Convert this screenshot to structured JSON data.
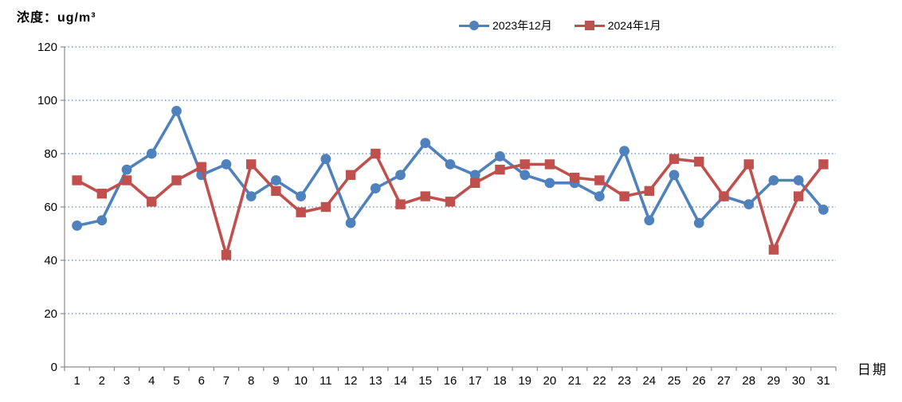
{
  "chart_data": {
    "type": "line",
    "title": "",
    "ylabel": "浓度：ug/m³",
    "xlabel": "日期",
    "categories": [
      "1",
      "2",
      "3",
      "4",
      "5",
      "6",
      "7",
      "8",
      "9",
      "10",
      "11",
      "12",
      "13",
      "14",
      "15",
      "16",
      "17",
      "18",
      "19",
      "20",
      "21",
      "22",
      "23",
      "24",
      "25",
      "26",
      "27",
      "28",
      "29",
      "30",
      "31"
    ],
    "series": [
      {
        "name": "2023年12月",
        "color": "#4F81BD",
        "marker": "circle",
        "values": [
          53,
          55,
          74,
          80,
          96,
          72,
          76,
          64,
          70,
          64,
          78,
          54,
          67,
          72,
          84,
          76,
          72,
          79,
          72,
          69,
          69,
          64,
          81,
          55,
          72,
          54,
          64,
          61,
          70,
          70,
          59
        ]
      },
      {
        "name": "2024年1月",
        "color": "#C0504D",
        "marker": "square",
        "values": [
          70,
          65,
          70,
          62,
          70,
          75,
          42,
          76,
          66,
          58,
          60,
          72,
          80,
          61,
          64,
          62,
          69,
          74,
          76,
          76,
          71,
          70,
          64,
          66,
          78,
          77,
          64,
          76,
          44,
          64,
          76
        ]
      }
    ],
    "ylim": [
      0,
      120
    ],
    "yticks": [
      0,
      20,
      40,
      60,
      80,
      100,
      120
    ],
    "grid": "horizontal-dotted",
    "legend_position": "top-center",
    "gridline_color": "#5E88BC",
    "axis_color": "#8C8C8C",
    "tick_label_color": "#000000"
  }
}
